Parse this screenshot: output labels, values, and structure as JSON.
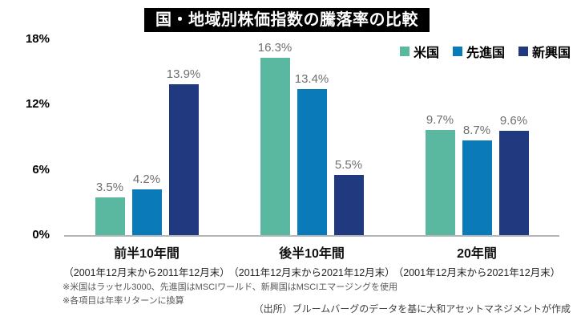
{
  "title": "国・地域別株価指数の騰落率の比較",
  "footnotes": [
    "※米国はラッセル3000、先進国はMSCIワールド、新興国はMSCIエマージングを使用",
    "※各項目は年率リターンに換算"
  ],
  "source": "（出所）ブルームバーグのデータを基に大和アセットマネジメントが作成",
  "chart_data": {
    "type": "bar",
    "title": "国・地域別株価指数の騰落率の比較",
    "categories": [
      {
        "label": "前半10年間",
        "sublabel": "（2001年12月末から2011年12月末）"
      },
      {
        "label": "後半10年間",
        "sublabel": "（2011年12月末から2021年12月末）"
      },
      {
        "label": "20年間",
        "sublabel": "（2001年12月末から2021年12月末）"
      }
    ],
    "series": [
      {
        "name": "米国",
        "color": "#5bb8a0",
        "values": [
          3.5,
          16.3,
          9.7
        ]
      },
      {
        "name": "先進国",
        "color": "#0a7ab8",
        "values": [
          4.2,
          13.4,
          8.7
        ]
      },
      {
        "name": "新興国",
        "color": "#21397f",
        "values": [
          13.9,
          5.5,
          9.6
        ]
      }
    ],
    "value_suffix": "%",
    "yticks": [
      "18%",
      "12%",
      "6%",
      "0%"
    ],
    "ylim": [
      0,
      18
    ],
    "grid": false,
    "legend_position": "top-right",
    "axis_line_color": "#b5b5b5",
    "value_label_color": "#6f6f6f"
  }
}
